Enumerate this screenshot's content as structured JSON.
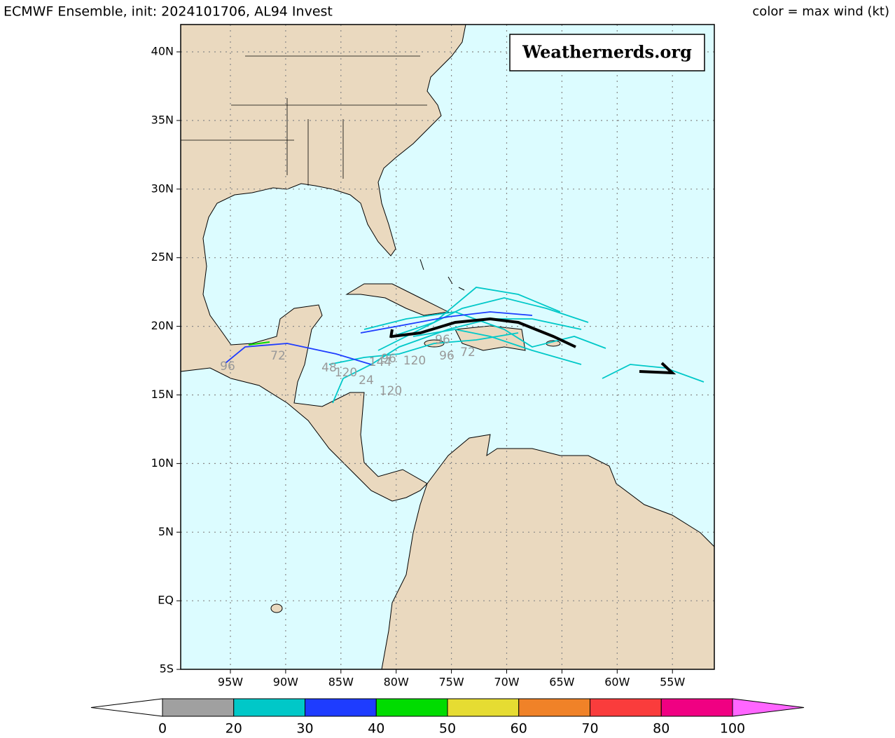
{
  "header": {
    "title": "ECMWF Ensemble, init: 2024101706, AL94 Invest",
    "legend_note": "color = max wind (kt)"
  },
  "watermark": "Weathernerds.org",
  "map": {
    "lat_labels": [
      "40N",
      "35N",
      "30N",
      "25N",
      "20N",
      "15N",
      "10N",
      "5N",
      "EQ",
      "5S"
    ],
    "lon_labels": [
      "95W",
      "90W",
      "85W",
      "80W",
      "75W",
      "70W",
      "65W",
      "60W",
      "55W"
    ],
    "track_labels": [
      "96",
      "72",
      "48",
      "120",
      "24",
      "144",
      "96",
      "120",
      "120",
      "96",
      "96",
      "72"
    ]
  },
  "colorbar": {
    "ticks": [
      0,
      20,
      30,
      40,
      50,
      60,
      70,
      80,
      100
    ],
    "colors": [
      "#a0a0a0",
      "#00c8c8",
      "#1e3cff",
      "#00dc00",
      "#e6dc32",
      "#f08228",
      "#fa3c3c",
      "#f00082"
    ],
    "under_color": "#ffffff",
    "over_color": "#ff66ff"
  }
}
